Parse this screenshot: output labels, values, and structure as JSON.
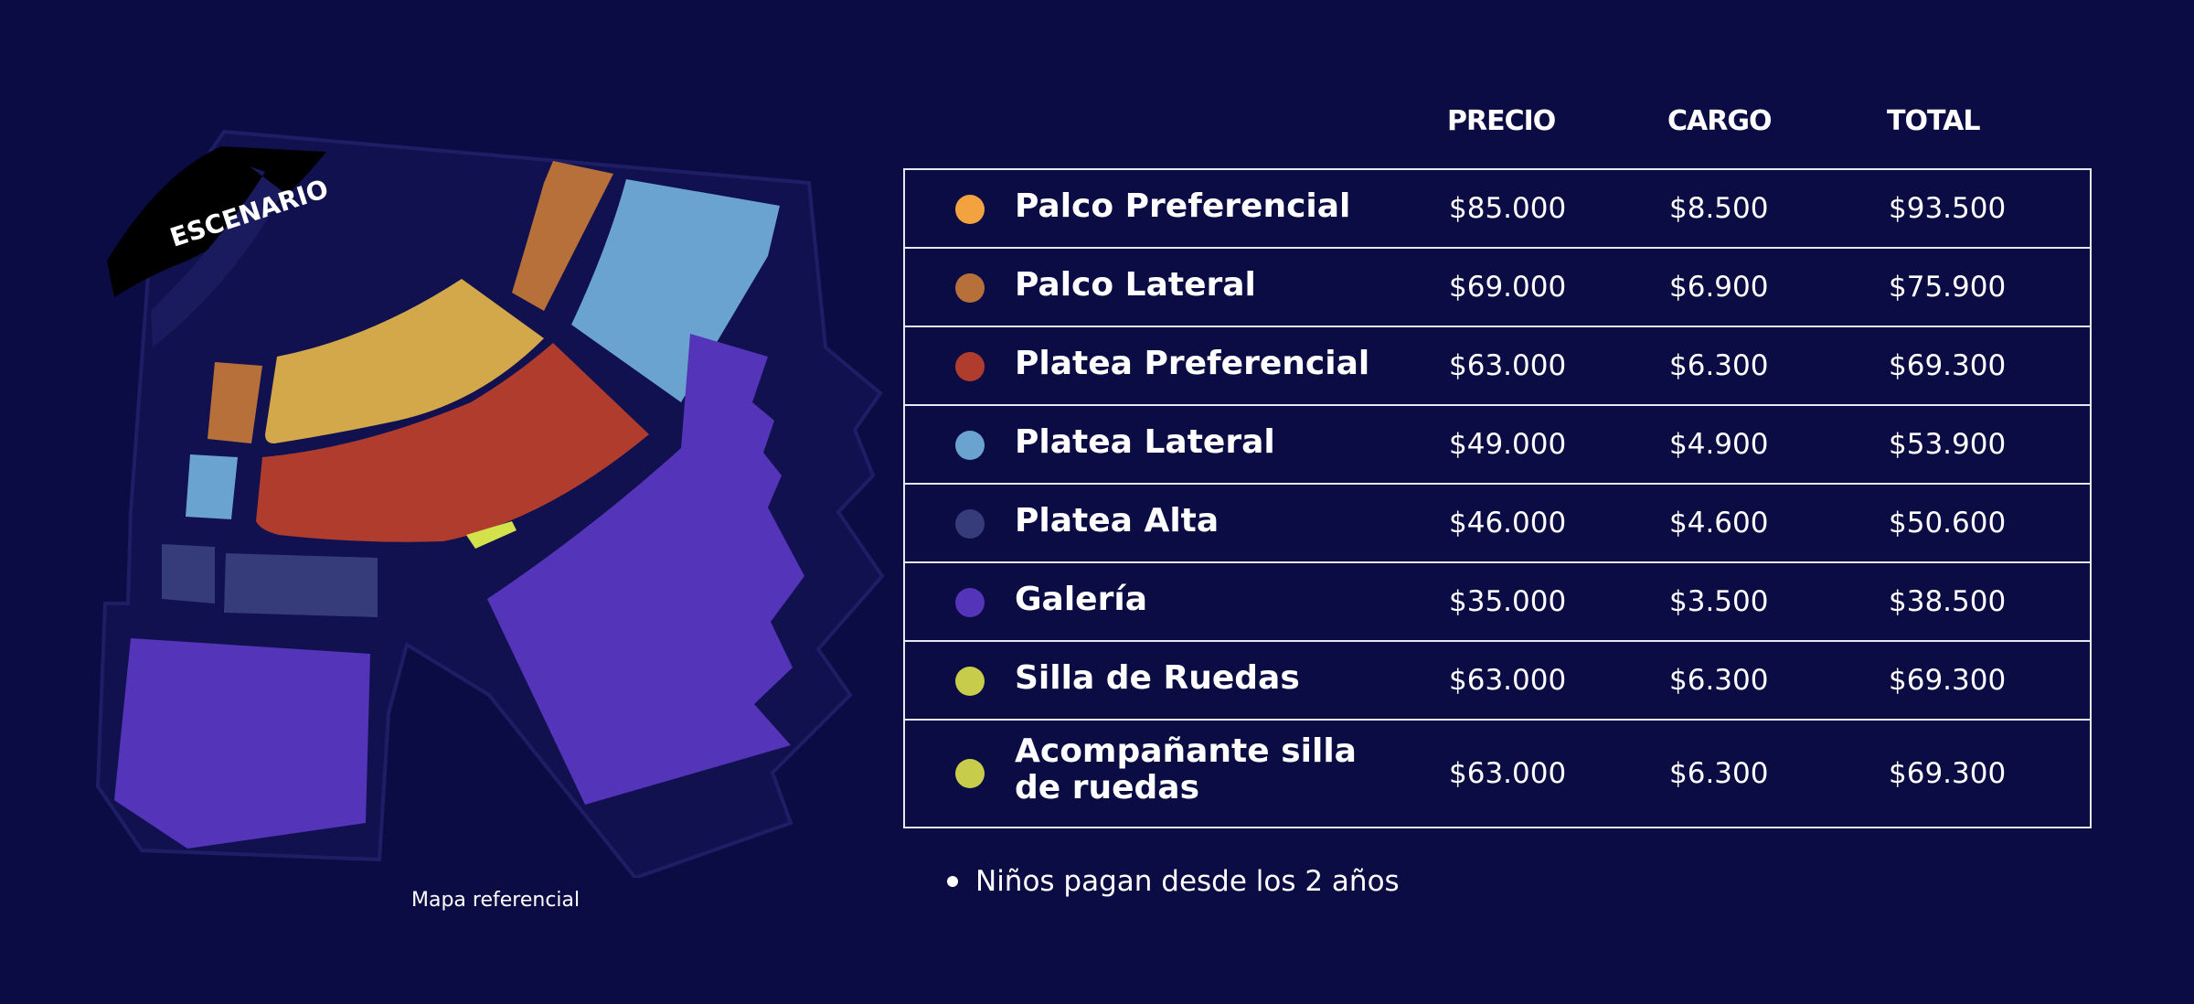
{
  "map": {
    "stage_label": "ESCENARIO",
    "caption": "Mapa referencial"
  },
  "table": {
    "headers": {
      "precio": "PRECIO",
      "cargo": "CARGO",
      "total": "TOTAL"
    },
    "rows": [
      {
        "zone": "Palco Preferencial",
        "color": "#f2a33f",
        "precio": "$85.000",
        "cargo": "$8.500",
        "total": "$93.500"
      },
      {
        "zone": "Palco Lateral",
        "color": "#b8703a",
        "precio": "$69.000",
        "cargo": "$6.900",
        "total": "$75.900"
      },
      {
        "zone": "Platea Preferencial",
        "color": "#b03c2e",
        "precio": "$63.000",
        "cargo": "$6.300",
        "total": "$69.300"
      },
      {
        "zone": "Platea Lateral",
        "color": "#6aa3cf",
        "precio": "$49.000",
        "cargo": "$4.900",
        "total": "$53.900"
      },
      {
        "zone": "Platea Alta",
        "color": "#363b7a",
        "precio": "$46.000",
        "cargo": "$4.600",
        "total": "$50.600"
      },
      {
        "zone": "Galería",
        "color": "#5434b8",
        "precio": "$35.000",
        "cargo": "$3.500",
        "total": "$38.500"
      },
      {
        "zone": "Silla de Ruedas",
        "color": "#c7cc4a",
        "precio": "$63.000",
        "cargo": "$6.300",
        "total": "$69.300"
      },
      {
        "zone": "Acompañante silla de ruedas",
        "color": "#c7cc4a",
        "precio": "$63.000",
        "cargo": "$6.300",
        "total": "$69.300"
      }
    ]
  },
  "notes": [
    "Niños pagan desde los 2 años"
  ]
}
